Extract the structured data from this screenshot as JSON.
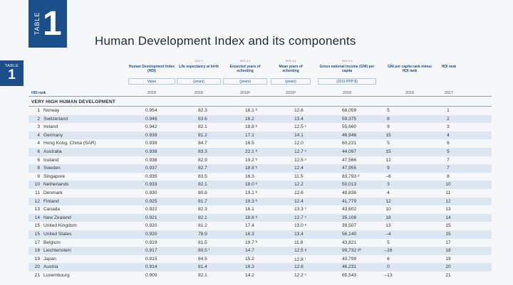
{
  "tab": {
    "word": "TABLE",
    "number": "1"
  },
  "title": "Human Development Index and its components",
  "side_tab": {
    "word": "TABLE",
    "number": "1"
  },
  "columns": [
    {
      "header": "Human Development Index (HDI)",
      "sdg": "",
      "unit": "Value",
      "year": "2018"
    },
    {
      "header": "Life expectancy at birth",
      "sdg": "SDG 3",
      "unit": "(years)",
      "year": "2018"
    },
    {
      "header": "Expected years of schooling",
      "sdg": "SDG 4.3",
      "unit": "(years)",
      "year": "2018ᵃ"
    },
    {
      "header": "Mean years of schooling",
      "sdg": "SDG 4.6",
      "unit": "(years)",
      "year": "2018ᵃ"
    },
    {
      "header": "Gross national income (GNI) per capita",
      "sdg": "SDG 8.5",
      "unit": "(2011 PPP $)",
      "year": "2018"
    },
    {
      "header": "GNI per capita rank minus HDI rank",
      "sdg": "",
      "unit": "",
      "year": "2018"
    },
    {
      "header": "HDI rank",
      "sdg": "",
      "unit": "",
      "year": "2017"
    }
  ],
  "hdi_rank_label": "HDI rank",
  "group_label": "VERY HIGH HUMAN DEVELOPMENT",
  "rows": [
    {
      "rank": "1",
      "country": "Norway",
      "hdi": "0.954",
      "life": "82.3",
      "school": "18.1 ᵇ",
      "mean": "12.6",
      "gni": "68,059",
      "diff": "5",
      "hrank": "1"
    },
    {
      "rank": "2",
      "country": "Switzerland",
      "hdi": "0.946",
      "life": "83.6",
      "school": "16.2",
      "mean": "13.4",
      "gni": "59,375",
      "diff": "8",
      "hrank": "2"
    },
    {
      "rank": "3",
      "country": "Ireland",
      "hdi": "0.942",
      "life": "82.1",
      "school": "18.8 ᵇ",
      "mean": "12.5 ᶜ",
      "gni": "55,660",
      "diff": "9",
      "hrank": "3"
    },
    {
      "rank": "4",
      "country": "Germany",
      "hdi": "0.939",
      "life": "81.2",
      "school": "17.1",
      "mean": "14.1",
      "gni": "46,946",
      "diff": "15",
      "hrank": "4"
    },
    {
      "rank": "4",
      "country": "Hong Kong, China (SAR)",
      "hdi": "0.939",
      "life": "84.7",
      "school": "16.5",
      "mean": "12.0",
      "gni": "60,221",
      "diff": "5",
      "hrank": "6"
    },
    {
      "rank": "6",
      "country": "Australia",
      "hdi": "0.938",
      "life": "83.3",
      "school": "22.1 ᵇ",
      "mean": "12.7 ᶜ",
      "gni": "44,097",
      "diff": "15",
      "hrank": "5"
    },
    {
      "rank": "6",
      "country": "Iceland",
      "hdi": "0.938",
      "life": "82.9",
      "school": "19.2 ᵇ",
      "mean": "12.5 ᶜ",
      "gni": "47,566",
      "diff": "12",
      "hrank": "7"
    },
    {
      "rank": "8",
      "country": "Sweden",
      "hdi": "0.937",
      "life": "82.7",
      "school": "18.8 ᵇ",
      "mean": "12.4",
      "gni": "47,955",
      "diff": "9",
      "hrank": "7"
    },
    {
      "rank": "9",
      "country": "Singapore",
      "hdi": "0.935",
      "life": "83.5",
      "school": "16.3",
      "mean": "11.5",
      "gni": "83,793 ᵈ",
      "diff": "–6",
      "hrank": "8"
    },
    {
      "rank": "10",
      "country": "Netherlands",
      "hdi": "0.933",
      "life": "82.1",
      "school": "18.0 ᵇ",
      "mean": "12.2",
      "gni": "50,013",
      "diff": "3",
      "hrank": "10"
    },
    {
      "rank": "11",
      "country": "Denmark",
      "hdi": "0.930",
      "life": "80.8",
      "school": "19.1 ᵇ",
      "mean": "12.6",
      "gni": "48,836",
      "diff": "4",
      "hrank": "11"
    },
    {
      "rank": "12",
      "country": "Finland",
      "hdi": "0.925",
      "life": "81.7",
      "school": "19.3 ᵇ",
      "mean": "12.4",
      "gni": "41,779",
      "diff": "12",
      "hrank": "12"
    },
    {
      "rank": "13",
      "country": "Canada",
      "hdi": "0.922",
      "life": "82.3",
      "school": "16.1",
      "mean": "13.3 ᶜ",
      "gni": "43,602",
      "diff": "10",
      "hrank": "13"
    },
    {
      "rank": "14",
      "country": "New Zealand",
      "hdi": "0.921",
      "life": "82.1",
      "school": "18.8 ᵇ",
      "mean": "12.7 ᶜ",
      "gni": "35,108",
      "diff": "18",
      "hrank": "14"
    },
    {
      "rank": "15",
      "country": "United Kingdom",
      "hdi": "0.920",
      "life": "81.2",
      "school": "17.4",
      "mean": "13.0 ᵉ",
      "gni": "39,507",
      "diff": "13",
      "hrank": "15"
    },
    {
      "rank": "15",
      "country": "United States",
      "hdi": "0.920",
      "life": "78.9",
      "school": "16.3",
      "mean": "13.4",
      "gni": "56,140",
      "diff": "–4",
      "hrank": "15"
    },
    {
      "rank": "17",
      "country": "Belgium",
      "hdi": "0.919",
      "life": "81.5",
      "school": "19.7 ᵇ",
      "mean": "11.8",
      "gni": "43,821",
      "diff": "5",
      "hrank": "17"
    },
    {
      "rank": "18",
      "country": "Liechtenstein",
      "hdi": "0.917",
      "life": "80.5 ᶠ",
      "school": "14.7",
      "mean": "12.5 ᵍ",
      "gni": "99,732 ᵍʰ",
      "diff": "–16",
      "hrank": "18"
    },
    {
      "rank": "19",
      "country": "Japan",
      "hdi": "0.915",
      "life": "84.5",
      "school": "15.2",
      "mean": "12.8 ⁱ",
      "gni": "40,799",
      "diff": "6",
      "hrank": "19"
    },
    {
      "rank": "20",
      "country": "Austria",
      "hdi": "0.914",
      "life": "81.4",
      "school": "16.3",
      "mean": "12.6",
      "gni": "46,231",
      "diff": "0",
      "hrank": "20"
    },
    {
      "rank": "21",
      "country": "Luxembourg",
      "hdi": "0.909",
      "life": "82.1",
      "school": "14.2",
      "mean": "12.2 ᶜ",
      "gni": "65,543",
      "diff": "–13",
      "hrank": "21"
    }
  ]
}
